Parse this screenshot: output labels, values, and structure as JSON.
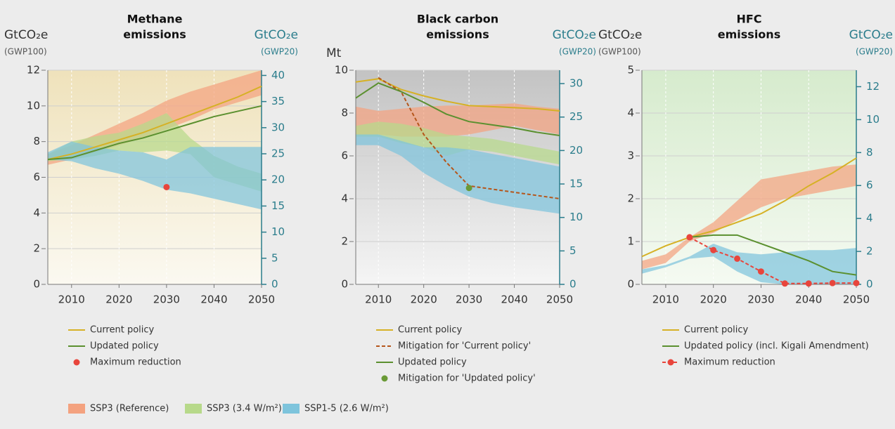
{
  "chart_data": [
    {
      "type": "line",
      "title": [
        "Methane",
        "emissions"
      ],
      "y_label": "GtCO₂e",
      "y_sublabel": "(GWP100)",
      "y2_label": "GtCO₂e",
      "y2_sublabel": "(GWP20)",
      "background": [
        "#efe2bb",
        "#fbf9f1"
      ],
      "x": [
        2005,
        2010,
        2015,
        2020,
        2025,
        2030,
        2035,
        2040,
        2045,
        2050
      ],
      "xlim": [
        2005,
        2050
      ],
      "xticks": [
        2010,
        2020,
        2030,
        2040,
        2050
      ],
      "ylim": [
        0,
        12
      ],
      "yticks": [
        0,
        2,
        4,
        6,
        8,
        10,
        12
      ],
      "y2lim": [
        0,
        41
      ],
      "y2ticks": [
        0,
        5,
        10,
        15,
        20,
        25,
        30,
        35,
        40
      ],
      "bands": [
        {
          "low": [
            6.7,
            7.0,
            7.4,
            7.8,
            8.2,
            8.7,
            9.2,
            9.8,
            10.2,
            10.6
          ],
          "high": [
            7.3,
            7.8,
            8.4,
            9.0,
            9.6,
            10.3,
            10.8,
            11.2,
            11.6,
            12.0
          ]
        },
        {
          "low": [
            6.9,
            7.0,
            7.2,
            7.5,
            7.4,
            7.5,
            7.3,
            6.0,
            5.6,
            5.2
          ],
          "high": [
            7.3,
            8.0,
            8.3,
            8.5,
            9.0,
            9.6,
            8.2,
            7.2,
            6.6,
            6.2
          ]
        },
        {
          "low": [
            7.0,
            6.9,
            6.5,
            6.2,
            5.8,
            5.3,
            5.1,
            4.8,
            4.5,
            4.2
          ],
          "high": [
            7.4,
            8.0,
            7.7,
            7.5,
            7.4,
            7.0,
            7.7,
            7.7,
            7.7,
            7.7
          ]
        }
      ],
      "series": [
        {
          "name": "Current policy",
          "color": "#d6b125",
          "style": "line",
          "values": [
            7.0,
            7.3,
            7.7,
            8.1,
            8.5,
            9.0,
            9.5,
            10.0,
            10.5,
            11.1
          ]
        },
        {
          "name": "Updated policy",
          "color": "#5b902f",
          "style": "line",
          "values": [
            7.0,
            7.1,
            7.5,
            7.9,
            8.2,
            8.6,
            9.0,
            9.4,
            9.7,
            10.0
          ]
        },
        {
          "name": "Maximum reduction",
          "color": "#e8453c",
          "style": "points",
          "values": [
            null,
            null,
            null,
            null,
            null,
            5.45,
            null,
            null,
            null,
            null
          ]
        }
      ]
    },
    {
      "type": "line",
      "title": [
        "Black carbon",
        "emissions"
      ],
      "y_label": "Mt",
      "y2_label": "GtCO₂e",
      "y2_sublabel": "(GWP20)",
      "background": [
        "#c3c3c3",
        "#f5f5f5"
      ],
      "x": [
        2005,
        2010,
        2015,
        2020,
        2025,
        2030,
        2035,
        2040,
        2045,
        2050
      ],
      "xlim": [
        2005,
        2050
      ],
      "xticks": [
        2010,
        2020,
        2030,
        2040,
        2050
      ],
      "ylim": [
        0,
        10
      ],
      "yticks": [
        0,
        2,
        4,
        6,
        8,
        10
      ],
      "y2lim": [
        0,
        32
      ],
      "y2ticks": [
        0,
        5,
        10,
        15,
        20,
        25,
        30
      ],
      "bands": [
        {
          "low": [
            7.0,
            7.0,
            6.9,
            6.9,
            6.9,
            7.0,
            7.2,
            7.4,
            7.2,
            7.0
          ],
          "high": [
            8.3,
            8.1,
            8.2,
            8.3,
            8.35,
            8.35,
            8.4,
            8.45,
            8.3,
            8.2
          ]
        },
        {
          "low": [
            6.9,
            6.9,
            6.6,
            6.4,
            6.0,
            6.3,
            6.2,
            6.0,
            5.8,
            5.6
          ],
          "high": [
            7.4,
            7.6,
            7.5,
            7.3,
            7.0,
            6.9,
            6.8,
            6.6,
            6.4,
            6.2
          ]
        },
        {
          "low": [
            6.5,
            6.5,
            6.0,
            5.2,
            4.6,
            4.1,
            3.8,
            3.6,
            3.45,
            3.3
          ],
          "high": [
            7.0,
            7.0,
            6.7,
            6.4,
            6.4,
            6.3,
            6.1,
            5.9,
            5.7,
            5.5
          ]
        }
      ],
      "series": [
        {
          "name": "Current policy",
          "color": "#d6b125",
          "style": "line",
          "values": [
            9.45,
            9.6,
            9.1,
            8.8,
            8.55,
            8.35,
            8.3,
            8.25,
            8.2,
            8.1
          ]
        },
        {
          "name": "Mitigation for 'Current policy'",
          "color": "#b5561b",
          "style": "dashed",
          "values": [
            null,
            9.65,
            9.0,
            7.0,
            5.7,
            4.6,
            4.45,
            4.3,
            4.15,
            4.0
          ]
        },
        {
          "name": "Updated policy",
          "color": "#5b902f",
          "style": "line",
          "values": [
            8.7,
            9.4,
            9.0,
            8.5,
            7.95,
            7.6,
            7.45,
            7.3,
            7.1,
            6.95
          ]
        },
        {
          "name": "Mitigation for 'Updated policy'",
          "color": "#6a9a36",
          "style": "points",
          "values": [
            null,
            null,
            null,
            null,
            null,
            4.5,
            null,
            null,
            null,
            null
          ]
        }
      ]
    },
    {
      "type": "line",
      "title": [
        "HFC",
        "emissions"
      ],
      "y_label": "GtCO₂e",
      "y_sublabel": "(GWP100)",
      "y2_label": "GtCO₂e",
      "y2_sublabel": "(GWP20)",
      "background": [
        "#d6ebcd",
        "#f5faf2"
      ],
      "x": [
        2005,
        2010,
        2015,
        2020,
        2025,
        2030,
        2035,
        2040,
        2045,
        2050
      ],
      "xlim": [
        2005,
        2050
      ],
      "xticks": [
        2010,
        2020,
        2030,
        2040,
        2050
      ],
      "ylim": [
        0,
        5
      ],
      "yticks": [
        0,
        1,
        2,
        3,
        4,
        5
      ],
      "y2lim": [
        0,
        13
      ],
      "y2ticks": [
        0,
        2,
        4,
        6,
        8,
        10,
        12
      ],
      "bands": [
        {
          "low": [
            0.35,
            0.5,
            1.0,
            1.2,
            1.5,
            1.8,
            2.0,
            2.1,
            2.2,
            2.3
          ],
          "high": [
            0.55,
            0.7,
            1.1,
            1.45,
            1.95,
            2.45,
            2.55,
            2.65,
            2.75,
            2.8
          ]
        },
        null,
        {
          "low": [
            0.25,
            0.4,
            0.6,
            0.65,
            0.3,
            0.05,
            0.0,
            0.0,
            0.0,
            0.0
          ],
          "high": [
            0.35,
            0.45,
            0.65,
            0.95,
            0.75,
            0.7,
            0.75,
            0.8,
            0.8,
            0.85
          ]
        }
      ],
      "series": [
        {
          "name": "Current policy",
          "color": "#d6b125",
          "style": "line",
          "values": [
            0.65,
            0.9,
            1.1,
            1.25,
            1.45,
            1.65,
            1.95,
            2.3,
            2.6,
            2.95
          ]
        },
        {
          "name": "Updated policy (incl. Kigali Amendment)",
          "color": "#5b902f",
          "style": "line",
          "values": [
            null,
            null,
            1.1,
            1.15,
            1.15,
            0.95,
            0.75,
            0.55,
            0.3,
            0.22
          ]
        },
        {
          "name": "Maximum reduction",
          "color": "#e8453c",
          "style": "dashed-points",
          "values": [
            null,
            null,
            1.1,
            0.8,
            0.6,
            0.3,
            0.02,
            0.02,
            0.03,
            0.03
          ]
        }
      ]
    }
  ],
  "band_legend": [
    {
      "name": "SSP3 (Reference)",
      "color": "#f4a27f"
    },
    {
      "name": "SSP3 (3.4 W/m²)",
      "color": "#b7d98a"
    },
    {
      "name": "SSP1-5 (2.6 W/m²)",
      "color": "#7ec4dc"
    }
  ]
}
